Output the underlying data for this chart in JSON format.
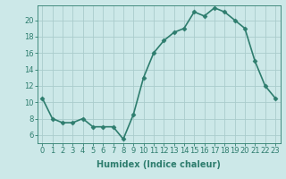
{
  "x": [
    0,
    1,
    2,
    3,
    4,
    5,
    6,
    7,
    8,
    9,
    10,
    11,
    12,
    13,
    14,
    15,
    16,
    17,
    18,
    19,
    20,
    21,
    22,
    23
  ],
  "y": [
    10.5,
    8.0,
    7.5,
    7.5,
    8.0,
    7.0,
    7.0,
    7.0,
    5.5,
    8.5,
    13.0,
    16.0,
    17.5,
    18.5,
    19.0,
    21.0,
    20.5,
    21.5,
    21.0,
    20.0,
    19.0,
    15.0,
    12.0,
    10.5
  ],
  "line_color": "#2e7d6e",
  "marker": "D",
  "marker_size": 2.5,
  "bg_color": "#cce8e8",
  "grid_color": "#aacccc",
  "xlabel": "Humidex (Indice chaleur)",
  "ylabel": "",
  "title": "",
  "xlim": [
    -0.5,
    23.5
  ],
  "ylim": [
    5.0,
    21.8
  ],
  "yticks": [
    6,
    8,
    10,
    12,
    14,
    16,
    18,
    20
  ],
  "xticks": [
    0,
    1,
    2,
    3,
    4,
    5,
    6,
    7,
    8,
    9,
    10,
    11,
    12,
    13,
    14,
    15,
    16,
    17,
    18,
    19,
    20,
    21,
    22,
    23
  ],
  "xtick_labels": [
    "0",
    "1",
    "2",
    "3",
    "4",
    "5",
    "6",
    "7",
    "8",
    "9",
    "10",
    "11",
    "12",
    "13",
    "14",
    "15",
    "16",
    "17",
    "18",
    "19",
    "20",
    "21",
    "22",
    "23"
  ],
  "xlabel_fontsize": 7,
  "tick_fontsize": 6,
  "linewidth": 1.2
}
